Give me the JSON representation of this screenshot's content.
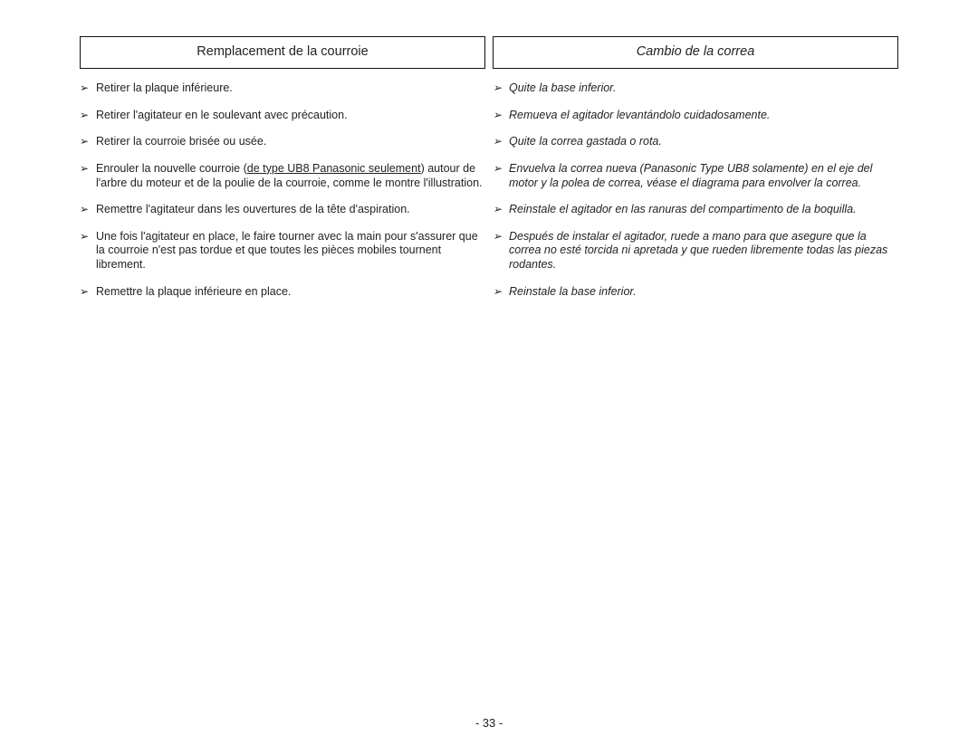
{
  "page": {
    "number": "- 33 -"
  },
  "left": {
    "heading": "Remplacement de la courroie",
    "items": [
      {
        "text_plain": "Retirer la plaque inférieure."
      },
      {
        "text_plain": "Retirer l'agitateur en le soulevant avec précaution."
      },
      {
        "text_plain": "Retirer la courroie brisée ou usée."
      },
      {
        "pre": "Enrouler la nouvelle courroie (",
        "underlined": "de type UB8 Panasonic seulement",
        "post": ") autour de l'arbre du moteur et de la poulie de la courroie, comme le montre l'illustration."
      },
      {
        "text_plain": "Remettre l'agitateur dans les ouvertures de la tête d'aspiration."
      },
      {
        "text_plain": "Une fois l'agitateur en place, le faire tourner avec la main pour s'assurer que la courroie n'est pas tordue et que toutes les pièces mobiles tournent librement."
      },
      {
        "text_plain": "Remettre la plaque inférieure en place."
      }
    ]
  },
  "right": {
    "heading": "Cambio de la correa",
    "items": [
      {
        "text_plain": "Quite la base inferior."
      },
      {
        "text_plain": "Remueva el agitador levantándolo cuidadosamente."
      },
      {
        "text_plain": "Quite la correa gastada o rota."
      },
      {
        "text_plain": "Envuelva la correa nueva (Panasonic Type UB8 solamente) en el eje del motor y la polea de correa, véase el diagrama  para envolver la correa."
      },
      {
        "text_plain": "Reinstale el agitador en las ranuras del compartimento de la boquilla."
      },
      {
        "text_plain": "Después de instalar el agitador, ruede a mano para que asegure que la correa no esté torcida ni apretada y que rueden libremente todas las piezas rodantes."
      },
      {
        "text_plain": "Reinstale la base inferior."
      }
    ]
  },
  "layout": {
    "text_color": "#222222",
    "border_color": "#111111",
    "background": "#ffffff",
    "heading_font_size": 14.5,
    "body_font_size": 12.5
  }
}
